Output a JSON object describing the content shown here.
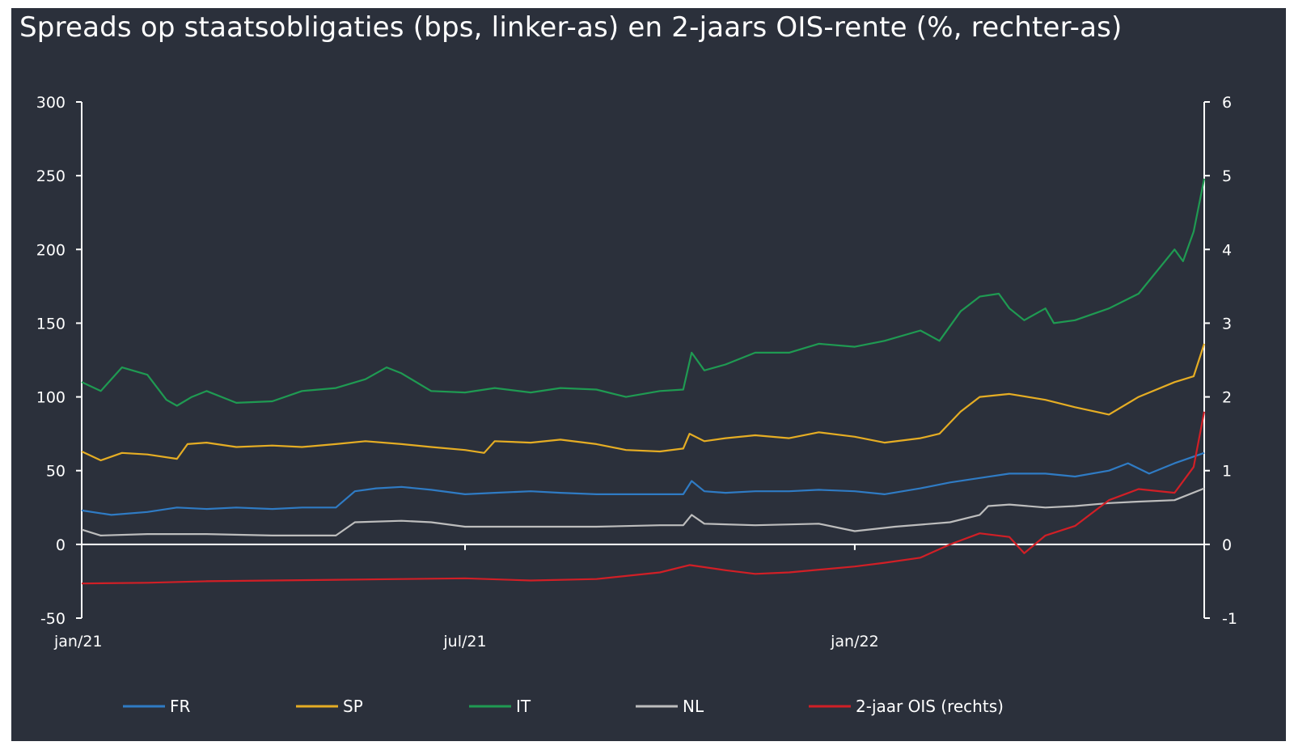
{
  "chart_data": {
    "type": "line",
    "title": "Spreads op staatsobligaties (bps, linker-as) en 2-jaars OIS-rente (%, rechter-as)",
    "x_range": [
      "2021-01-01",
      "2022-06-15"
    ],
    "x_ticks": [
      {
        "date": "2021-01-01",
        "label": "jan/21"
      },
      {
        "date": "2021-07-01",
        "label": "jul/21"
      },
      {
        "date": "2022-01-01",
        "label": "jan/22"
      }
    ],
    "y_left": {
      "range": [
        -50,
        300
      ],
      "ticks": [
        300,
        250,
        200,
        150,
        100,
        50,
        0,
        -50
      ]
    },
    "y_right": {
      "range": [
        -1,
        6
      ],
      "ticks": [
        6,
        5,
        4,
        3,
        2,
        1,
        0,
        -1
      ]
    },
    "grid": false,
    "legend_position": "bottom",
    "series": [
      {
        "name": "FR",
        "axis": "left",
        "color": "#2f7bc4",
        "points": [
          [
            "2021-01-01",
            23
          ],
          [
            "2021-01-15",
            20
          ],
          [
            "2021-02-01",
            22
          ],
          [
            "2021-02-15",
            25
          ],
          [
            "2021-03-01",
            24
          ],
          [
            "2021-03-15",
            25
          ],
          [
            "2021-04-01",
            24
          ],
          [
            "2021-04-15",
            25
          ],
          [
            "2021-05-01",
            25
          ],
          [
            "2021-05-10",
            36
          ],
          [
            "2021-05-20",
            38
          ],
          [
            "2021-06-01",
            39
          ],
          [
            "2021-06-15",
            37
          ],
          [
            "2021-07-01",
            34
          ],
          [
            "2021-07-15",
            35
          ],
          [
            "2021-08-01",
            36
          ],
          [
            "2021-08-15",
            35
          ],
          [
            "2021-09-01",
            34
          ],
          [
            "2021-09-15",
            34
          ],
          [
            "2021-10-01",
            34
          ],
          [
            "2021-10-12",
            34
          ],
          [
            "2021-10-16",
            43
          ],
          [
            "2021-10-22",
            36
          ],
          [
            "2021-11-01",
            35
          ],
          [
            "2021-11-15",
            36
          ],
          [
            "2021-12-01",
            36
          ],
          [
            "2021-12-15",
            37
          ],
          [
            "2022-01-01",
            36
          ],
          [
            "2022-01-15",
            34
          ],
          [
            "2022-02-01",
            38
          ],
          [
            "2022-02-15",
            42
          ],
          [
            "2022-03-01",
            45
          ],
          [
            "2022-03-15",
            48
          ],
          [
            "2022-04-01",
            48
          ],
          [
            "2022-04-15",
            46
          ],
          [
            "2022-05-01",
            50
          ],
          [
            "2022-05-10",
            55
          ],
          [
            "2022-05-20",
            48
          ],
          [
            "2022-06-01",
            55
          ],
          [
            "2022-06-15",
            62
          ]
        ]
      },
      {
        "name": "SP",
        "axis": "left",
        "color": "#e5ad24",
        "points": [
          [
            "2021-01-01",
            63
          ],
          [
            "2021-01-10",
            57
          ],
          [
            "2021-01-20",
            62
          ],
          [
            "2021-02-01",
            61
          ],
          [
            "2021-02-15",
            58
          ],
          [
            "2021-02-20",
            68
          ],
          [
            "2021-03-01",
            69
          ],
          [
            "2021-03-15",
            66
          ],
          [
            "2021-04-01",
            67
          ],
          [
            "2021-04-15",
            66
          ],
          [
            "2021-05-01",
            68
          ],
          [
            "2021-05-15",
            70
          ],
          [
            "2021-06-01",
            68
          ],
          [
            "2021-06-15",
            66
          ],
          [
            "2021-07-01",
            64
          ],
          [
            "2021-07-10",
            62
          ],
          [
            "2021-07-15",
            70
          ],
          [
            "2021-08-01",
            69
          ],
          [
            "2021-08-15",
            71
          ],
          [
            "2021-09-01",
            68
          ],
          [
            "2021-09-15",
            64
          ],
          [
            "2021-10-01",
            63
          ],
          [
            "2021-10-12",
            65
          ],
          [
            "2021-10-15",
            75
          ],
          [
            "2021-10-22",
            70
          ],
          [
            "2021-11-01",
            72
          ],
          [
            "2021-11-15",
            74
          ],
          [
            "2021-12-01",
            72
          ],
          [
            "2021-12-15",
            76
          ],
          [
            "2022-01-01",
            73
          ],
          [
            "2022-01-15",
            69
          ],
          [
            "2022-02-01",
            72
          ],
          [
            "2022-02-10",
            75
          ],
          [
            "2022-02-20",
            90
          ],
          [
            "2022-03-01",
            100
          ],
          [
            "2022-03-15",
            102
          ],
          [
            "2022-04-01",
            98
          ],
          [
            "2022-04-15",
            93
          ],
          [
            "2022-05-01",
            88
          ],
          [
            "2022-05-15",
            100
          ],
          [
            "2022-06-01",
            110
          ],
          [
            "2022-06-10",
            114
          ],
          [
            "2022-06-15",
            136
          ]
        ]
      },
      {
        "name": "IT",
        "axis": "left",
        "color": "#1f9a52",
        "points": [
          [
            "2021-01-01",
            110
          ],
          [
            "2021-01-10",
            104
          ],
          [
            "2021-01-20",
            120
          ],
          [
            "2021-02-01",
            115
          ],
          [
            "2021-02-10",
            98
          ],
          [
            "2021-02-15",
            94
          ],
          [
            "2021-02-22",
            100
          ],
          [
            "2021-03-01",
            104
          ],
          [
            "2021-03-15",
            96
          ],
          [
            "2021-04-01",
            97
          ],
          [
            "2021-04-15",
            104
          ],
          [
            "2021-05-01",
            106
          ],
          [
            "2021-05-15",
            112
          ],
          [
            "2021-05-25",
            120
          ],
          [
            "2021-06-01",
            116
          ],
          [
            "2021-06-15",
            104
          ],
          [
            "2021-07-01",
            103
          ],
          [
            "2021-07-15",
            106
          ],
          [
            "2021-08-01",
            103
          ],
          [
            "2021-08-15",
            106
          ],
          [
            "2021-09-01",
            105
          ],
          [
            "2021-09-15",
            100
          ],
          [
            "2021-10-01",
            104
          ],
          [
            "2021-10-12",
            105
          ],
          [
            "2021-10-16",
            130
          ],
          [
            "2021-10-22",
            118
          ],
          [
            "2021-11-01",
            122
          ],
          [
            "2021-11-15",
            130
          ],
          [
            "2021-12-01",
            130
          ],
          [
            "2021-12-15",
            136
          ],
          [
            "2022-01-01",
            134
          ],
          [
            "2022-01-15",
            138
          ],
          [
            "2022-02-01",
            145
          ],
          [
            "2022-02-10",
            138
          ],
          [
            "2022-02-20",
            158
          ],
          [
            "2022-03-01",
            168
          ],
          [
            "2022-03-10",
            170
          ],
          [
            "2022-03-15",
            160
          ],
          [
            "2022-03-22",
            152
          ],
          [
            "2022-04-01",
            160
          ],
          [
            "2022-04-05",
            150
          ],
          [
            "2022-04-15",
            152
          ],
          [
            "2022-05-01",
            160
          ],
          [
            "2022-05-15",
            170
          ],
          [
            "2022-06-01",
            200
          ],
          [
            "2022-06-05",
            192
          ],
          [
            "2022-06-10",
            212
          ],
          [
            "2022-06-15",
            248
          ]
        ]
      },
      {
        "name": "NL",
        "axis": "left",
        "color": "#bdbdbd",
        "points": [
          [
            "2021-01-01",
            10
          ],
          [
            "2021-01-10",
            6
          ],
          [
            "2021-02-01",
            7
          ],
          [
            "2021-03-01",
            7
          ],
          [
            "2021-04-01",
            6
          ],
          [
            "2021-05-01",
            6
          ],
          [
            "2021-05-10",
            15
          ],
          [
            "2021-06-01",
            16
          ],
          [
            "2021-06-15",
            15
          ],
          [
            "2021-07-01",
            12
          ],
          [
            "2021-08-01",
            12
          ],
          [
            "2021-09-01",
            12
          ],
          [
            "2021-10-01",
            13
          ],
          [
            "2021-10-12",
            13
          ],
          [
            "2021-10-16",
            20
          ],
          [
            "2021-10-22",
            14
          ],
          [
            "2021-11-15",
            13
          ],
          [
            "2021-12-15",
            14
          ],
          [
            "2022-01-01",
            9
          ],
          [
            "2022-01-20",
            12
          ],
          [
            "2022-02-15",
            15
          ],
          [
            "2022-03-01",
            20
          ],
          [
            "2022-03-05",
            26
          ],
          [
            "2022-03-15",
            27
          ],
          [
            "2022-04-01",
            25
          ],
          [
            "2022-04-15",
            26
          ],
          [
            "2022-05-01",
            28
          ],
          [
            "2022-05-15",
            29
          ],
          [
            "2022-06-01",
            30
          ],
          [
            "2022-06-15",
            38
          ]
        ]
      },
      {
        "name": "2-jaar OIS (rechts)",
        "axis": "right",
        "color": "#d11f26",
        "points": [
          [
            "2021-01-01",
            -0.53
          ],
          [
            "2021-02-01",
            -0.52
          ],
          [
            "2021-03-01",
            -0.5
          ],
          [
            "2021-04-01",
            -0.49
          ],
          [
            "2021-05-01",
            -0.48
          ],
          [
            "2021-06-01",
            -0.47
          ],
          [
            "2021-07-01",
            -0.46
          ],
          [
            "2021-08-01",
            -0.49
          ],
          [
            "2021-09-01",
            -0.47
          ],
          [
            "2021-10-01",
            -0.38
          ],
          [
            "2021-10-15",
            -0.28
          ],
          [
            "2021-11-01",
            -0.35
          ],
          [
            "2021-11-15",
            -0.4
          ],
          [
            "2021-12-01",
            -0.38
          ],
          [
            "2022-01-01",
            -0.3
          ],
          [
            "2022-01-15",
            -0.25
          ],
          [
            "2022-02-01",
            -0.18
          ],
          [
            "2022-02-15",
            0.0
          ],
          [
            "2022-03-01",
            0.15
          ],
          [
            "2022-03-15",
            0.1
          ],
          [
            "2022-03-22",
            -0.12
          ],
          [
            "2022-04-01",
            0.12
          ],
          [
            "2022-04-15",
            0.25
          ],
          [
            "2022-05-01",
            0.6
          ],
          [
            "2022-05-15",
            0.75
          ],
          [
            "2022-06-01",
            0.7
          ],
          [
            "2022-06-10",
            1.05
          ],
          [
            "2022-06-15",
            1.8
          ]
        ]
      }
    ]
  }
}
